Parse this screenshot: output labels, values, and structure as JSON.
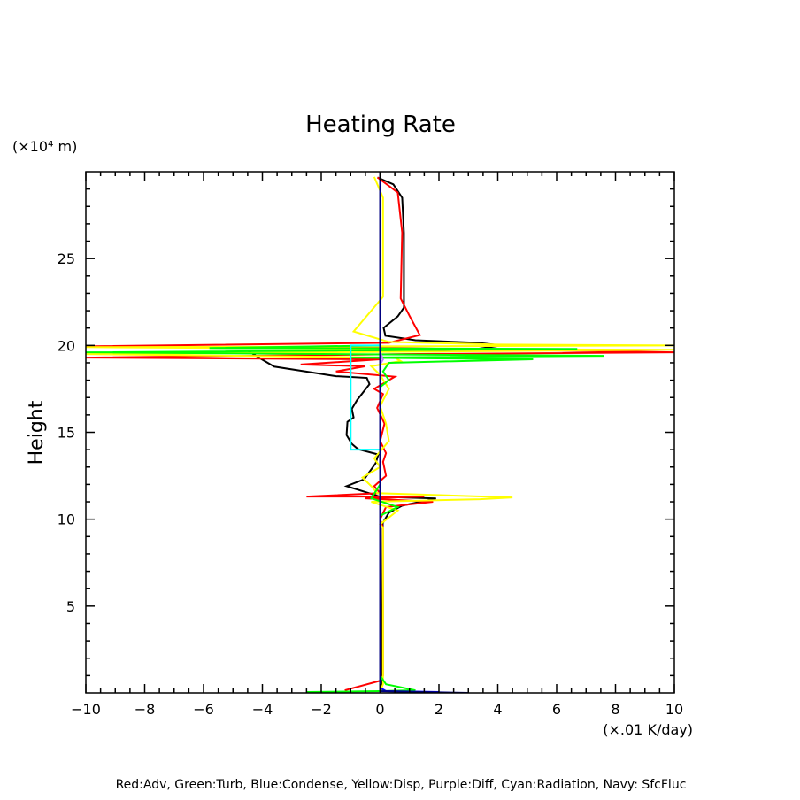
{
  "chart_data": {
    "type": "line",
    "title": "Heating Rate",
    "ylabel": "Height",
    "yunit": "(×10⁴ m)",
    "xunit": "(×.01 K/day)",
    "xlim": [
      -10,
      10
    ],
    "ylim": [
      0,
      30
    ],
    "xticks": [
      -10,
      -8,
      -6,
      -4,
      -2,
      0,
      2,
      4,
      6,
      8,
      10
    ],
    "xtick_labels": [
      "−10",
      "−8",
      "−6",
      "−4",
      "−2",
      "0",
      "2",
      "4",
      "6",
      "8",
      "10"
    ],
    "yticks": [
      5,
      10,
      15,
      20,
      25
    ],
    "ytick_labels": [
      "5",
      "10",
      "15",
      "20",
      "25"
    ],
    "legend_text": "Red:Adv, Green:Turb, Blue:Condense, Yellow:Disp, Purple:Diff, Cyan:Radiation, Navy: SfcFluc",
    "grid": false,
    "series": [
      {
        "key": "total",
        "color": "#000000",
        "points": [
          [
            -0.09,
            29.67
          ],
          [
            0.45,
            29.27
          ],
          [
            0.75,
            28.5
          ],
          [
            0.81,
            26.48
          ],
          [
            0.81,
            22.18
          ],
          [
            0.6,
            21.67
          ],
          [
            0.12,
            21.01
          ],
          [
            0.18,
            20.56
          ],
          [
            1.2,
            20.3
          ],
          [
            3.31,
            20.15
          ],
          [
            4.12,
            20.0
          ],
          [
            3.31,
            19.8
          ],
          [
            1.5,
            19.7
          ],
          [
            -4.5,
            19.7
          ],
          [
            -4.06,
            19.24
          ],
          [
            -3.6,
            18.78
          ],
          [
            -1.5,
            18.23
          ],
          [
            -0.45,
            18.13
          ],
          [
            -0.36,
            17.77
          ],
          [
            -0.78,
            16.86
          ],
          [
            -0.96,
            16.35
          ],
          [
            -0.9,
            15.85
          ],
          [
            -1.11,
            15.6
          ],
          [
            -1.14,
            14.84
          ],
          [
            -0.96,
            14.33
          ],
          [
            -0.75,
            14.03
          ],
          [
            -0.06,
            13.72
          ],
          [
            -0.15,
            13.22
          ],
          [
            -0.54,
            12.3
          ],
          [
            -1.14,
            11.9
          ],
          [
            -0.36,
            11.49
          ],
          [
            0,
            11.29
          ],
          [
            1.9,
            11.19
          ],
          [
            0.75,
            10.78
          ],
          [
            0.3,
            10.38
          ],
          [
            0.09,
            9.77
          ],
          [
            0.06,
            0.15
          ]
        ]
      },
      {
        "key": "adv",
        "name": "Adv",
        "color": "#ff0000",
        "points": [
          [
            -0.09,
            29.67
          ],
          [
            0.6,
            28.8
          ],
          [
            0.75,
            26.5
          ],
          [
            0.7,
            22.7
          ],
          [
            1.0,
            21.7
          ],
          [
            1.35,
            20.6
          ],
          [
            0.3,
            20.15
          ],
          [
            -10,
            19.95
          ],
          [
            0.5,
            19.85
          ],
          [
            10,
            19.6
          ],
          [
            0.8,
            19.5
          ],
          [
            -10,
            19.3
          ],
          [
            0,
            19.2
          ],
          [
            -2.7,
            18.9
          ],
          [
            -0.5,
            18.8
          ],
          [
            -1.5,
            18.5
          ],
          [
            0.5,
            18.2
          ],
          [
            0.2,
            17.9
          ],
          [
            -0.2,
            17.5
          ],
          [
            0.1,
            17.2
          ],
          [
            -0.1,
            16.4
          ],
          [
            0.15,
            15.5
          ],
          [
            0,
            14.5
          ],
          [
            0.2,
            13.8
          ],
          [
            0.1,
            13.3
          ],
          [
            0.2,
            12.5
          ],
          [
            -0.2,
            11.9
          ],
          [
            0,
            11.5
          ],
          [
            -2.5,
            11.3
          ],
          [
            1.5,
            11.3
          ],
          [
            -0.5,
            11.2
          ],
          [
            1.8,
            11.0
          ],
          [
            0.2,
            10.7
          ],
          [
            0,
            10.0
          ],
          [
            0.1,
            9.5
          ],
          [
            0.1,
            1.0
          ],
          [
            0,
            0.7
          ],
          [
            -1.2,
            0.15
          ]
        ]
      },
      {
        "key": "disp",
        "name": "Disp",
        "color": "#ffff00",
        "points": [
          [
            -0.2,
            29.7
          ],
          [
            0.1,
            28.5
          ],
          [
            0.1,
            22.8
          ],
          [
            -0.7,
            21.2
          ],
          [
            -0.9,
            20.8
          ],
          [
            0.3,
            20.2
          ],
          [
            4,
            20.05
          ],
          [
            10,
            20.0
          ],
          [
            -10,
            19.9
          ],
          [
            0,
            19.8
          ],
          [
            10,
            19.75
          ],
          [
            -10,
            19.5
          ],
          [
            0.5,
            19.3
          ],
          [
            0.7,
            19.1
          ],
          [
            -0.3,
            18.8
          ],
          [
            0,
            18.3
          ],
          [
            0.3,
            17.5
          ],
          [
            0,
            16.5
          ],
          [
            0.2,
            15.5
          ],
          [
            0.3,
            14.5
          ],
          [
            -0.2,
            13.5
          ],
          [
            0,
            13.0
          ],
          [
            -0.6,
            12.4
          ],
          [
            -0.3,
            11.9
          ],
          [
            -0.1,
            11.5
          ],
          [
            4.5,
            11.25
          ],
          [
            3.4,
            11.15
          ],
          [
            -0.3,
            11.0
          ],
          [
            0.6,
            10.5
          ],
          [
            0,
            9.7
          ],
          [
            0.1,
            9.5
          ],
          [
            0.1,
            0.5
          ],
          [
            0,
            0.05
          ]
        ]
      },
      {
        "key": "turb",
        "name": "Turb",
        "color": "#00ff00",
        "points": [
          [
            0,
            20.0
          ],
          [
            -5.8,
            19.85
          ],
          [
            6.7,
            19.8
          ],
          [
            -10,
            19.6
          ],
          [
            7.6,
            19.4
          ],
          [
            -1,
            19.3
          ],
          [
            5.2,
            19.2
          ],
          [
            0.3,
            19.0
          ],
          [
            0.1,
            18.5
          ],
          [
            0.3,
            18.0
          ],
          [
            0,
            17.6
          ],
          [
            0,
            12.0
          ],
          [
            -0.3,
            11.2
          ],
          [
            0.6,
            10.7
          ],
          [
            0,
            10.2
          ],
          [
            0,
            1.0
          ],
          [
            0.2,
            0.5
          ],
          [
            1.2,
            0.15
          ],
          [
            0,
            0.1
          ],
          [
            -2.5,
            0.05
          ]
        ]
      },
      {
        "key": "radiation",
        "name": "Radiation",
        "color": "#00ffff",
        "points": [
          [
            0,
            20.0
          ],
          [
            -1,
            20.0
          ],
          [
            -1,
            14.0
          ],
          [
            0,
            14.0
          ]
        ]
      },
      {
        "key": "diff",
        "name": "Diff",
        "color": "#c080ff",
        "points": [
          [
            0,
            19.6
          ],
          [
            0.1,
            19.2
          ],
          [
            0,
            18.9
          ]
        ]
      },
      {
        "key": "condense",
        "name": "Condense",
        "color": "#0000ff",
        "points": [
          [
            0,
            0.3
          ],
          [
            0.2,
            0.1
          ],
          [
            2,
            0.05
          ]
        ]
      },
      {
        "key": "sfcfluc",
        "name": "SfcFluc",
        "color": "#000080",
        "points": [
          [
            0,
            30
          ],
          [
            0,
            0.1
          ],
          [
            3,
            0.0
          ]
        ]
      }
    ]
  }
}
